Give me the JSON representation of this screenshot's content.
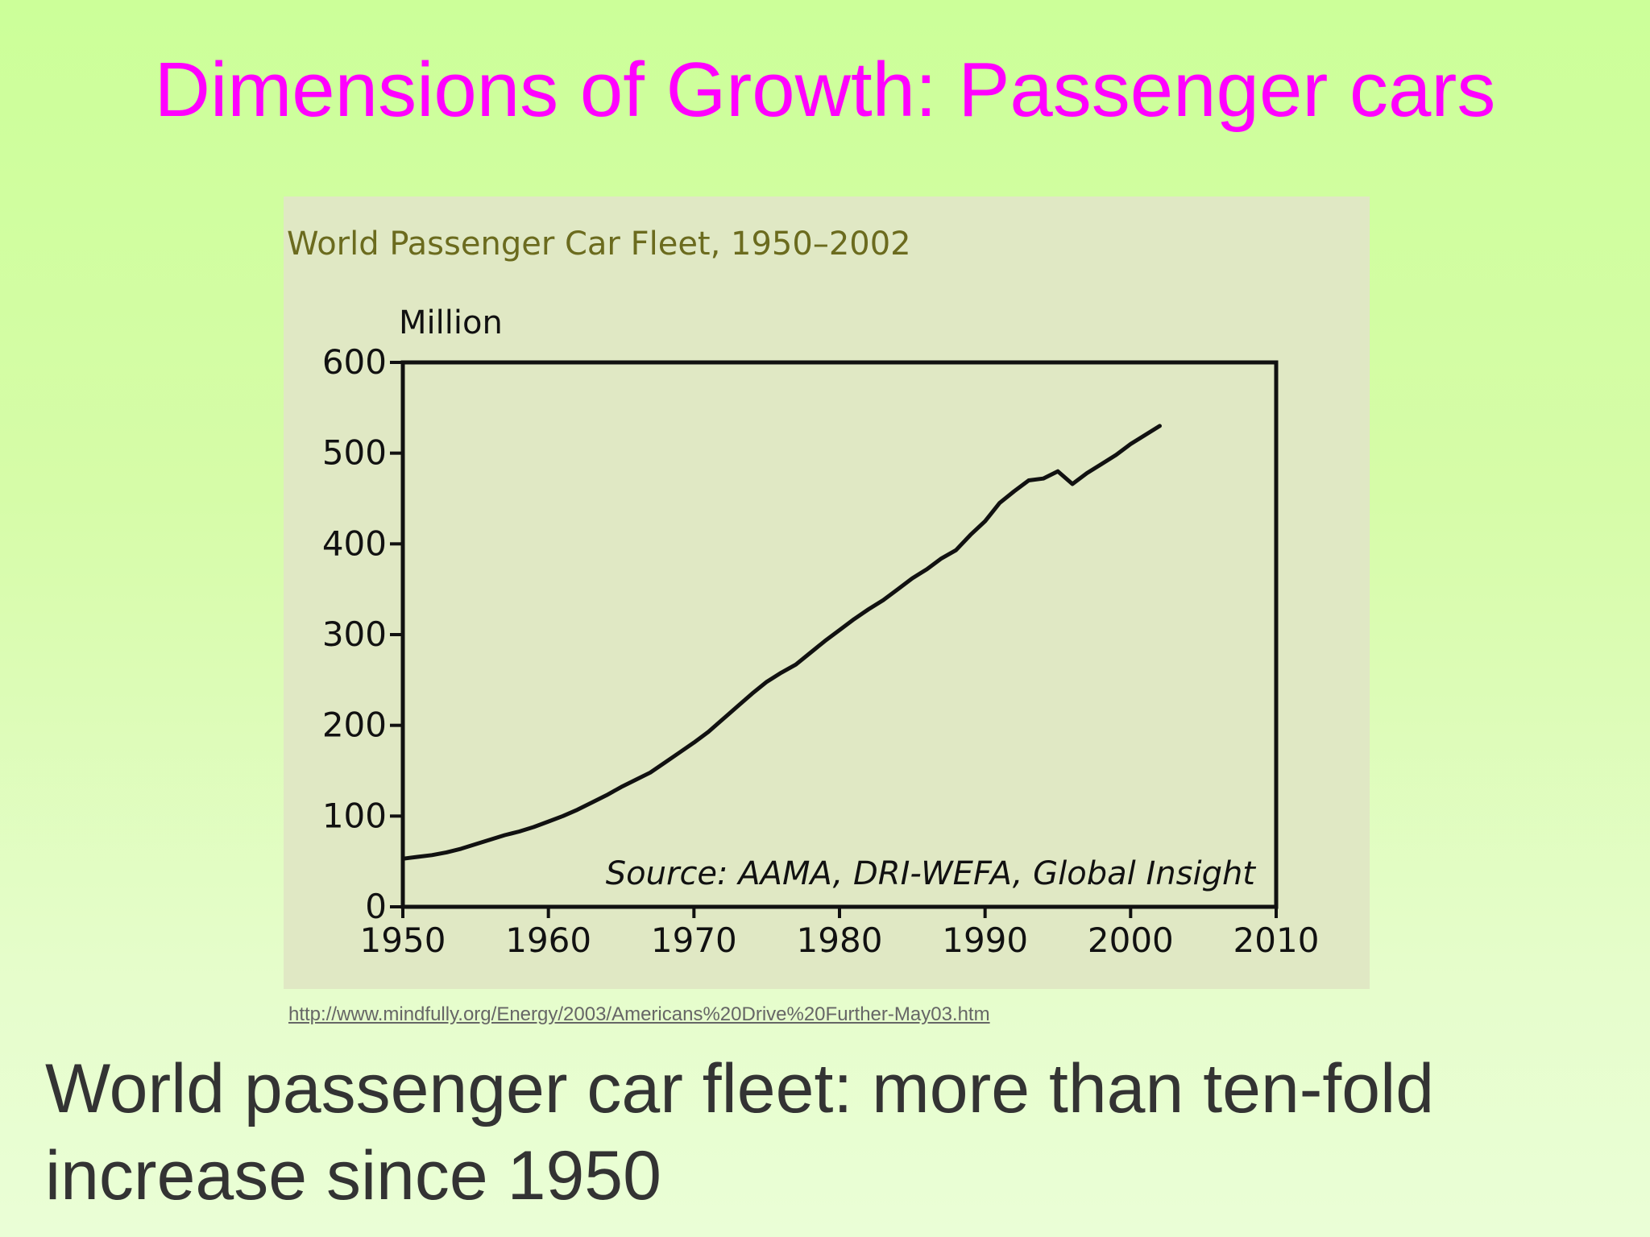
{
  "slide": {
    "title": "Dimensions of Growth: Passenger cars",
    "source_url": "http://www.mindfully.org/Energy/2003/Americans%20Drive%20Further-May03.htm",
    "body_text": "World passenger car fleet: more than ten-fold increase since 1950",
    "colors": {
      "title": "#ff00ff",
      "body": "#333333",
      "background_top": "#ccff99",
      "background_bottom": "#eafed6",
      "chart_panel": "#e0e8c4",
      "chart_title": "#6b6b1e",
      "line": "#111111"
    }
  },
  "chart_data": {
    "type": "line",
    "title": "World Passenger Car Fleet, 1950–2002",
    "ylabel": "Million",
    "xlabel": "",
    "annotation": "Source: AAMA, DRI-WEFA, Global Insight",
    "xlim": [
      1950,
      2010
    ],
    "ylim": [
      0,
      600
    ],
    "x_ticks": [
      1950,
      1960,
      1970,
      1980,
      1990,
      2000,
      2010
    ],
    "y_ticks": [
      0,
      100,
      200,
      300,
      400,
      500,
      600
    ],
    "grid": false,
    "legend": "none",
    "series": [
      {
        "x": [
          1950,
          1951,
          1952,
          1953,
          1954,
          1955,
          1956,
          1957,
          1958,
          1959,
          1960,
          1961,
          1962,
          1963,
          1964,
          1965,
          1966,
          1967,
          1968,
          1969,
          1970,
          1971,
          1972,
          1973,
          1974,
          1975,
          1976,
          1977,
          1978,
          1979,
          1980,
          1981,
          1982,
          1983,
          1984,
          1985,
          1986,
          1987,
          1988,
          1989,
          1990,
          1991,
          1992,
          1993,
          1994,
          1995,
          1996,
          1997,
          1998,
          1999,
          2000,
          2001,
          2002
        ],
        "values": [
          53,
          55,
          57,
          60,
          64,
          69,
          74,
          79,
          83,
          88,
          94,
          100,
          107,
          115,
          123,
          132,
          140,
          148,
          159,
          170,
          181,
          193,
          207,
          221,
          235,
          248,
          258,
          267,
          280,
          293,
          305,
          317,
          328,
          338,
          350,
          362,
          372,
          384,
          393,
          410,
          425,
          445,
          458,
          470,
          472,
          480,
          466,
          478,
          488,
          498,
          510,
          520,
          530
        ]
      }
    ]
  }
}
